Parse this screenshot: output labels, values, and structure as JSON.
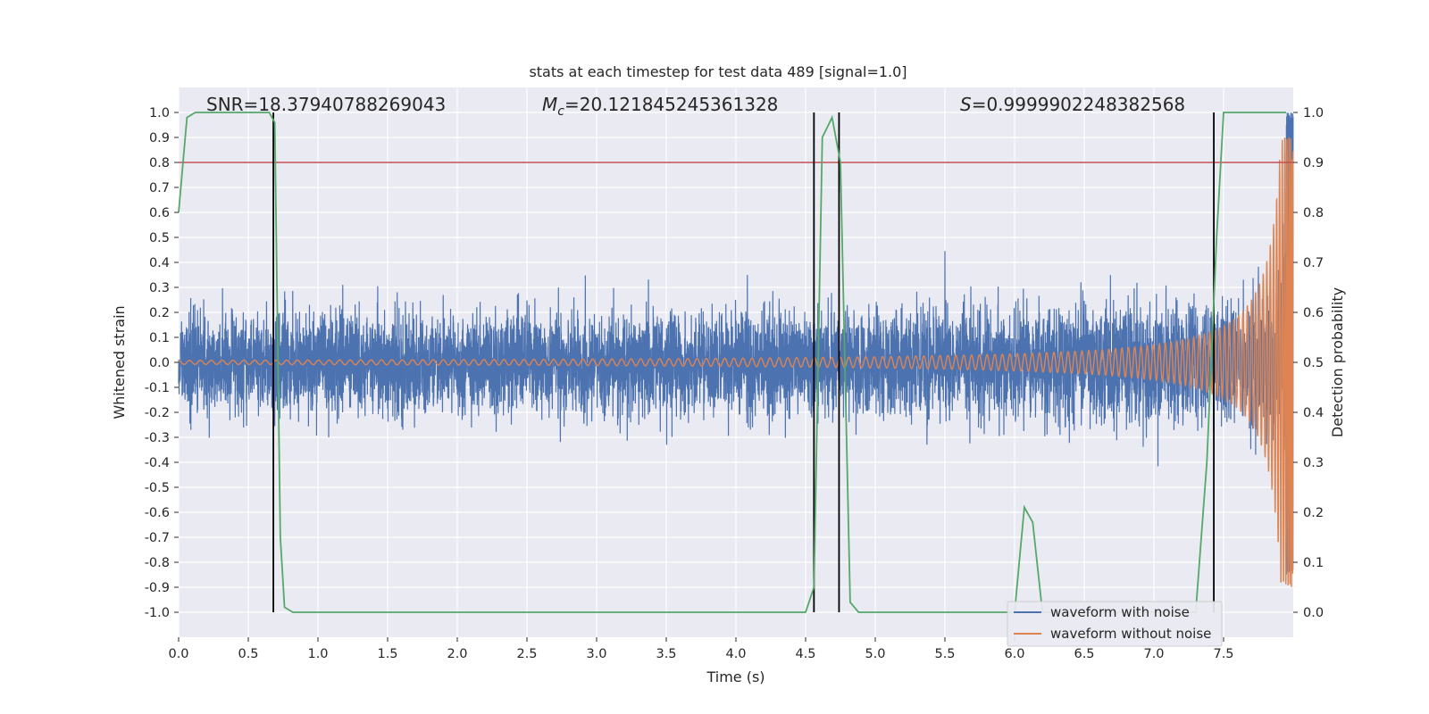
{
  "chart_data": {
    "type": "line",
    "title": "stats at each timestep for test data 489 [signal=1.0]",
    "xlabel": "Time (s)",
    "ylabel": "Whitened strain",
    "y2label": "Detection probability",
    "xlim": [
      0.0,
      8.0
    ],
    "ylim": [
      -1.1,
      1.1
    ],
    "y2lim": [
      -0.05,
      1.05
    ],
    "xticks": [
      "0.0",
      "0.5",
      "1.0",
      "1.5",
      "2.0",
      "2.5",
      "3.0",
      "3.5",
      "4.0",
      "4.5",
      "5.0",
      "5.5",
      "6.0",
      "6.5",
      "7.0",
      "7.5"
    ],
    "yticks": [
      "1.0",
      "0.9",
      "0.8",
      "0.7",
      "0.6",
      "0.5",
      "0.4",
      "0.3",
      "0.2",
      "0.1",
      "0.0",
      "-0.1",
      "-0.2",
      "-0.3",
      "-0.4",
      "-0.5",
      "-0.6",
      "-0.7",
      "-0.8",
      "-0.9",
      "-1.0"
    ],
    "y2ticks": [
      "1.0",
      "0.9",
      "0.8",
      "0.7",
      "0.6",
      "0.5",
      "0.4",
      "0.3",
      "0.2",
      "0.1",
      "0.0"
    ],
    "annotations": {
      "snr": "SNR=18.37940788269043",
      "mc_symbol": "M",
      "mc_sub": "c",
      "mc_value": "=20.121845245361328",
      "s_symbol": "S",
      "s_value": "=0.9999902248382568"
    },
    "threshold": {
      "axis": "y2",
      "value": 0.9,
      "color": "#c44e52"
    },
    "event_lines_s": [
      0.68,
      4.56,
      4.74,
      7.43
    ],
    "series": [
      {
        "name": "waveform with noise",
        "color": "#4c72b0",
        "axis": "y",
        "description": "whitened noisy strain, amplitude roughly within -0.45..0.45, growing near merger",
        "envelope": {
          "base_amplitude": 0.28,
          "spike_max": 0.45,
          "end_peak": 1.0,
          "end_trough": -0.85
        }
      },
      {
        "name": "waveform without noise",
        "color": "#dd8452",
        "axis": "y",
        "description": "chirp signal with frequency and amplitude increasing toward merger near t=8.0",
        "chirp": {
          "start_amplitude": 0.008,
          "peak_amplitude": 0.9,
          "merger_time": 8.0
        }
      },
      {
        "name": "detection probability",
        "color": "#55a868",
        "axis": "y2",
        "x": [
          0.0,
          0.06,
          0.12,
          0.65,
          0.69,
          0.73,
          0.76,
          0.82,
          2.0,
          3.8,
          3.85,
          4.5,
          4.56,
          4.62,
          4.69,
          4.75,
          4.82,
          4.88,
          5.9,
          6.0,
          6.07,
          6.13,
          6.2,
          7.3,
          7.38,
          7.45,
          7.5,
          7.95
        ],
        "y": [
          0.8,
          0.99,
          1.0,
          1.0,
          0.98,
          0.15,
          0.01,
          0.0,
          0.0,
          0.0,
          0.0,
          0.0,
          0.05,
          0.95,
          0.99,
          0.9,
          0.02,
          0.0,
          0.0,
          0.0,
          0.21,
          0.18,
          0.0,
          0.0,
          0.3,
          0.75,
          1.0,
          1.0
        ]
      }
    ],
    "legend": {
      "placement": "lower-right",
      "entries": [
        "waveform with noise",
        "waveform without noise"
      ]
    }
  }
}
